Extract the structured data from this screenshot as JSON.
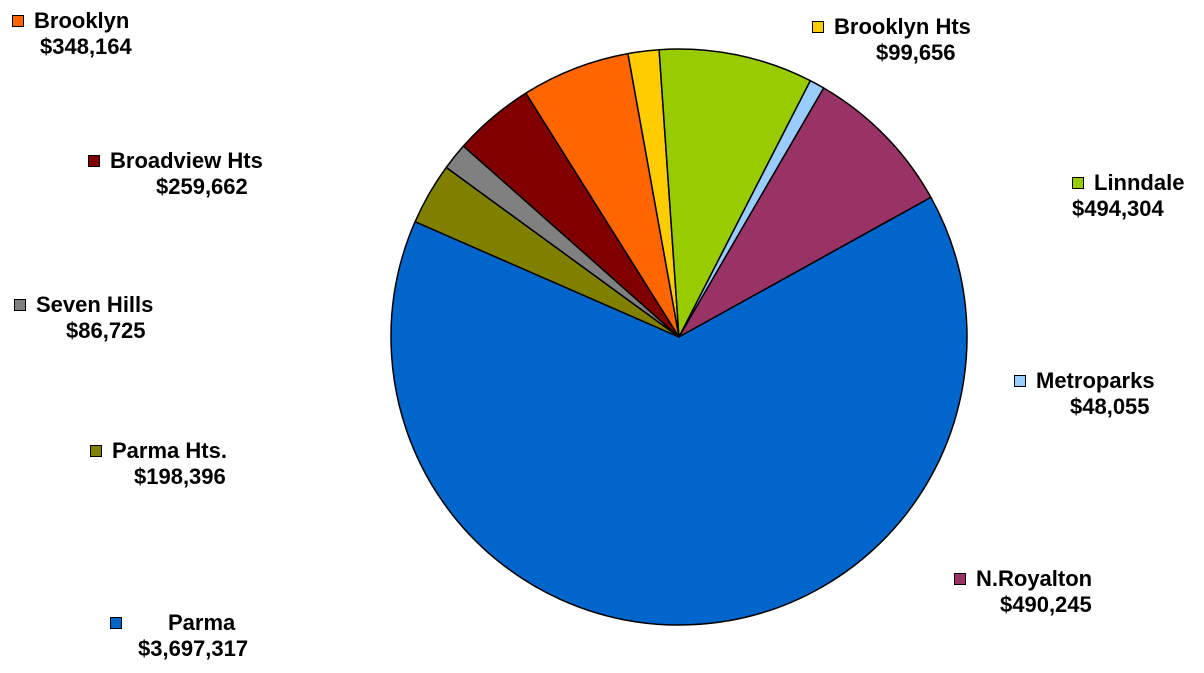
{
  "chart_data": {
    "type": "pie",
    "title": "",
    "start_angle_deg": 349.77,
    "direction": "clockwise",
    "slices": [
      {
        "name": "Brooklyn Hts",
        "value_label": "$99,656",
        "value": 99656,
        "color": "#FFCC00"
      },
      {
        "name": "Linndale",
        "value_label": "$494,304",
        "value": 494304,
        "color": "#99CC00"
      },
      {
        "name": "Metroparks",
        "value_label": "$48,055",
        "value": 48055,
        "color": "#99CCFF"
      },
      {
        "name": "N.Royalton",
        "value_label": "$490,245",
        "value": 490245,
        "color": "#993366"
      },
      {
        "name": "Parma",
        "value_label": "$3,697,317",
        "value": 3697317,
        "color": "#0066CC"
      },
      {
        "name": "Parma Hts.",
        "value_label": "$198,396",
        "value": 198396,
        "color": "#808000"
      },
      {
        "name": "Seven Hills",
        "value_label": "$86,725",
        "value": 86725,
        "color": "#808080"
      },
      {
        "name": "Broadview Hts",
        "value_label": "$259,662",
        "value": 259662,
        "color": "#800000"
      },
      {
        "name": "Brooklyn",
        "value_label": "$348,164",
        "value": 348164,
        "color": "#FF6600"
      }
    ]
  }
}
